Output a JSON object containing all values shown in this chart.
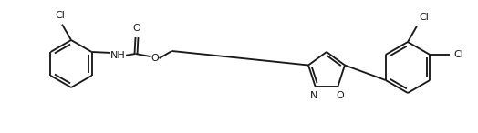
{
  "bg_color": "#ffffff",
  "line_color": "#1a1a1a",
  "line_width": 1.35,
  "font_size": 8.0,
  "figsize": [
    5.24,
    1.46
  ],
  "dpi": 100,
  "xlim": [
    0,
    524
  ],
  "ylim": [
    0,
    146
  ]
}
